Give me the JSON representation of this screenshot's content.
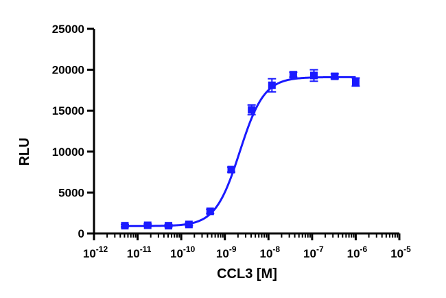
{
  "chart_data": {
    "type": "scatter",
    "xlabel": "CCL3 [M]",
    "ylabel": "RLU",
    "x_scale": "log",
    "xlim": [
      1e-12,
      1e-05
    ],
    "ylim": [
      0,
      25000
    ],
    "x_tick_values": [
      1e-12,
      1e-11,
      1e-10,
      1e-09,
      1e-08,
      1e-07,
      1e-06,
      1e-05
    ],
    "x_tick_exponents": [
      "-12",
      "-11",
      "-10",
      "-9",
      "-8",
      "-7",
      "-6",
      "-5"
    ],
    "x_tick_base": "10",
    "y_ticks": [
      0,
      5000,
      10000,
      15000,
      20000,
      25000
    ],
    "y_tick_labels": [
      "0",
      "5000",
      "10000",
      "15000",
      "20000",
      "25000"
    ],
    "grid": false,
    "color": "#1a1aff",
    "series": [
      {
        "x": [
          5.1e-12,
          1.7e-11,
          5.1e-11,
          1.5e-10,
          4.6e-10,
          1.4e-09,
          4.1e-09,
          1.2e-08,
          3.7e-08,
          1.1e-07,
          3.3e-07,
          1e-06
        ],
        "y": [
          950,
          1000,
          950,
          1100,
          2700,
          7800,
          15100,
          18100,
          19400,
          19300,
          19200,
          18500
        ],
        "err": [
          150,
          150,
          150,
          150,
          250,
          300,
          600,
          800,
          300,
          700,
          300,
          500
        ]
      }
    ],
    "fit_curve": {
      "model": "sigmoidal dose-response",
      "bottom": 900,
      "top": 19100,
      "ec50": 2.2e-09,
      "hill": 1.55
    }
  }
}
